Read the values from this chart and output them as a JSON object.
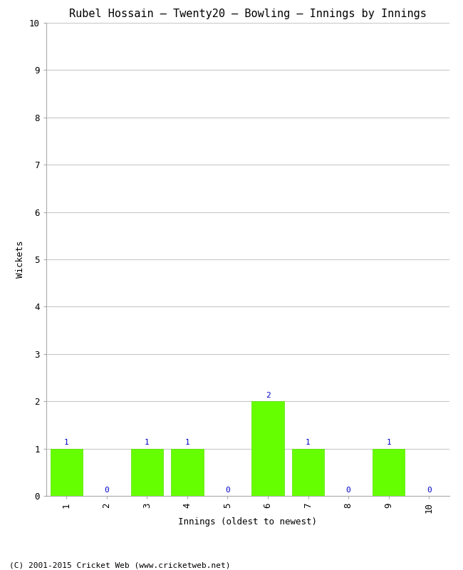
{
  "title": "Rubel Hossain – Twenty20 – Bowling – Innings by Innings",
  "xlabel": "Innings (oldest to newest)",
  "ylabel": "Wickets",
  "categories": [
    1,
    2,
    3,
    4,
    5,
    6,
    7,
    8,
    9,
    10
  ],
  "values": [
    1,
    0,
    1,
    1,
    0,
    2,
    1,
    0,
    1,
    0
  ],
  "bar_color": "#66ff00",
  "label_color": "#0000cc",
  "ylim": [
    0,
    10
  ],
  "yticks": [
    0,
    1,
    2,
    3,
    4,
    5,
    6,
    7,
    8,
    9,
    10
  ],
  "xlim": [
    0.5,
    10.5
  ],
  "background_color": "#ffffff",
  "grid_color": "#c8c8c8",
  "title_fontsize": 11,
  "axis_label_fontsize": 9,
  "tick_label_fontsize": 9,
  "bar_label_fontsize": 8,
  "footer_text": "(C) 2001-2015 Cricket Web (www.cricketweb.net)",
  "footer_fontsize": 8
}
